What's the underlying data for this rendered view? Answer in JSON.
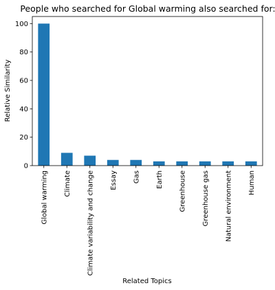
{
  "chart_data": {
    "type": "bar",
    "title": "People who searched for Global warming also searched for:",
    "xlabel": "Related Topics",
    "ylabel": "Relative Similarity",
    "categories": [
      "Global warming",
      "Climate",
      "Climate variability and change",
      "Essay",
      "Gas",
      "Earth",
      "Greenhouse",
      "Greenhouse gas",
      "Natural environment",
      "Human"
    ],
    "values": [
      100,
      9,
      7,
      4,
      4,
      3,
      3,
      3,
      3,
      3
    ],
    "ylim": [
      0,
      105
    ],
    "yticks": [
      0,
      20,
      40,
      60,
      80,
      100
    ],
    "bar_color": "#1f77b4",
    "grid": false,
    "legend": "none"
  }
}
